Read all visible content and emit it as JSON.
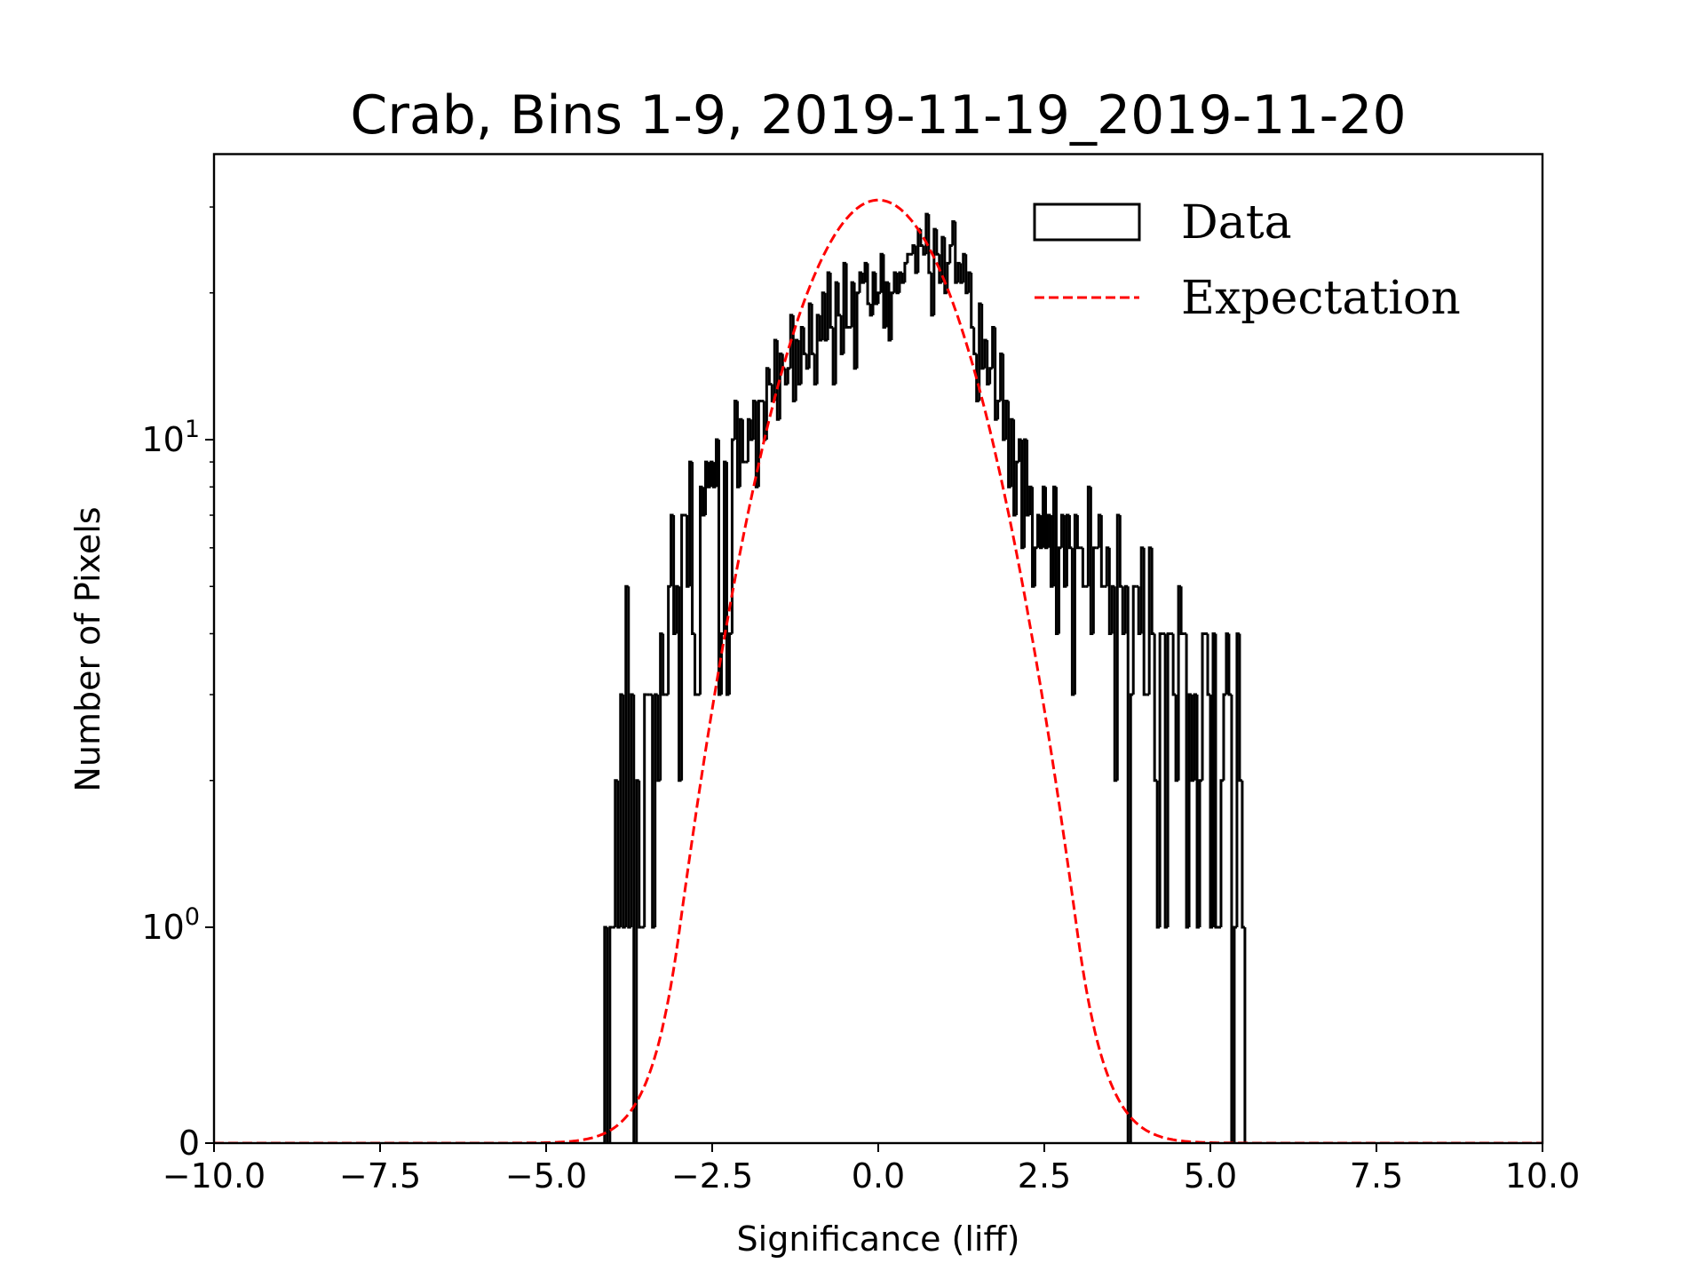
{
  "chart_data": {
    "type": "histogram",
    "title": "Crab, Bins 1-9, 2019-11-19_2019-11-20",
    "xlabel": "Significance (liff)",
    "ylabel": "Number of Pixels",
    "xlim": [
      -10,
      10
    ],
    "ylim": [
      0,
      38.5
    ],
    "yscale": "symlog",
    "linthresh": 1,
    "xticks": [
      {
        "value": -10,
        "label": "−10.0"
      },
      {
        "value": -7.5,
        "label": "−7.5"
      },
      {
        "value": -5,
        "label": "−5.0"
      },
      {
        "value": -2.5,
        "label": "−2.5"
      },
      {
        "value": 0,
        "label": "0.0"
      },
      {
        "value": 2.5,
        "label": "2.5"
      },
      {
        "value": 5,
        "label": "5.0"
      },
      {
        "value": 7.5,
        "label": "7.5"
      },
      {
        "value": 10,
        "label": "10.0"
      }
    ],
    "yticks": [
      {
        "value": 0,
        "base": "0",
        "exp": ""
      },
      {
        "value": 1,
        "base": "10",
        "exp": "0"
      },
      {
        "value": 10,
        "base": "10",
        "exp": "1"
      }
    ],
    "legend": {
      "position": "top-right",
      "entries": [
        {
          "label": "Data",
          "style": "step",
          "color": "#000000"
        },
        {
          "label": "Expectation",
          "style": "dashed",
          "color": "#ff0000"
        }
      ]
    },
    "histogram": {
      "bin_start": -4.12,
      "bin_width": 0.04,
      "counts": [
        1,
        0,
        1,
        1,
        2,
        1,
        3,
        1,
        5,
        1,
        3,
        0,
        2,
        1,
        1,
        3,
        3,
        3,
        1,
        3,
        2,
        4,
        3,
        3,
        5,
        7,
        4,
        5,
        2,
        7,
        7,
        5,
        9,
        4,
        3,
        3,
        8,
        7,
        9,
        8,
        9,
        8,
        10,
        3,
        4,
        9,
        3,
        4,
        10,
        12,
        8,
        11,
        9,
        9,
        11,
        10,
        12,
        8,
        12,
        12,
        10,
        14,
        13,
        12,
        16,
        11,
        15,
        14,
        13,
        14,
        18,
        12,
        16,
        13,
        17,
        15,
        14,
        19,
        15,
        13,
        18,
        16,
        20,
        16,
        22,
        17,
        13,
        21,
        18,
        15,
        23,
        17,
        17,
        21,
        14,
        20,
        22,
        21,
        23,
        19,
        18,
        22,
        19,
        20,
        24,
        17,
        21,
        16,
        20,
        22,
        20,
        22,
        21,
        23,
        24,
        24,
        25,
        22,
        27,
        25,
        24,
        29,
        22,
        18,
        27,
        24,
        21,
        26,
        20,
        23,
        25,
        28,
        21,
        23,
        21,
        24,
        20,
        22,
        17,
        15,
        12,
        19,
        14,
        16,
        13,
        14,
        17,
        11,
        12,
        15,
        10,
        12,
        8,
        11,
        7,
        9,
        10,
        6,
        10,
        7,
        8,
        5,
        6,
        7,
        6,
        8,
        6,
        7,
        5,
        8,
        4,
        6,
        7,
        5,
        7,
        6,
        3,
        7,
        6,
        6,
        5,
        5,
        8,
        4,
        6,
        6,
        7,
        5,
        5,
        6,
        4,
        5,
        2,
        7,
        5,
        4,
        5,
        0,
        3,
        5,
        5,
        4,
        6,
        3,
        3,
        6,
        4,
        2,
        1,
        4,
        4,
        1,
        4,
        4,
        3,
        2,
        5,
        4,
        4,
        1,
        3,
        2,
        3,
        1,
        2,
        4,
        4,
        3,
        1,
        4,
        1,
        1,
        2,
        3,
        4,
        3,
        0,
        1,
        4,
        2,
        1
      ],
      "color": "#000000"
    },
    "expectation": {
      "type": "gaussian",
      "amplitude": 31,
      "mean": 0,
      "sigma": 1.14,
      "color": "#ff0000"
    }
  }
}
